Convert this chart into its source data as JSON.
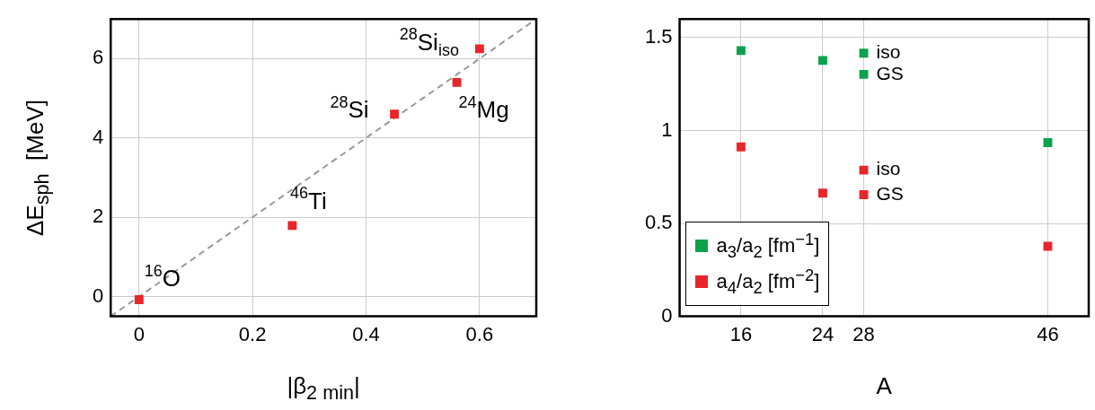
{
  "chart_data": [
    {
      "type": "scatter",
      "xlabel": "|β$_{2 min}$|",
      "ylabel": "ΔE$_{sph}$  [MeV]",
      "xlim": [
        -0.05,
        0.7
      ],
      "ylim": [
        -0.5,
        7
      ],
      "xticks": [
        0,
        0.2,
        0.4,
        0.6
      ],
      "yticks": [
        0,
        2,
        4,
        6
      ],
      "grid": true,
      "marker": "square",
      "series": [
        {
          "color": "#e8262a",
          "x": [
            0,
            0.27,
            0.45,
            0.56,
            0.6
          ],
          "values": [
            -0.08,
            1.79,
            4.6,
            5.4,
            6.25
          ]
        },
        {
          "type": "line",
          "color": "#999999",
          "line_style": "dashed",
          "marker": "none",
          "x": [
            -0.05,
            0.7
          ],
          "values": [
            -0.5,
            7
          ]
        }
      ],
      "annotations": [
        {
          "text": "$^{16}$O",
          "x": 0,
          "y": -0.08
        },
        {
          "text": "$^{46}$Ti",
          "x": 0.27,
          "y": 1.79
        },
        {
          "text": "$^{28}$Si",
          "x": 0.45,
          "y": 4.6
        },
        {
          "text": "$^{24}$Mg",
          "x": 0.56,
          "y": 5.4
        },
        {
          "text": "$^{28}$Si$_{iso}$",
          "x": 0.6,
          "y": 6.25
        }
      ]
    },
    {
      "type": "scatter",
      "xlabel": "A",
      "xlim": [
        10,
        50
      ],
      "ylim": [
        0,
        1.6
      ],
      "xticks": [
        16,
        24,
        28,
        46
      ],
      "yticks": [
        0,
        0.5,
        1,
        1.5
      ],
      "grid": true,
      "marker": "square",
      "legend": "bottom left",
      "series": [
        {
          "name": "a$_{3}$/a$_{2}$ [fm$^{−1}$]",
          "color": "#0ca24c",
          "x": [
            16,
            24,
            28,
            28,
            46
          ],
          "values": [
            1.43,
            1.377,
            1.416,
            1.302,
            0.935
          ]
        },
        {
          "name": "a$_{4}$/a$_{2}$ [fm$^{−2}$]",
          "color": "#e8262a",
          "x": [
            16,
            24,
            28,
            28,
            46
          ],
          "values": [
            0.912,
            0.663,
            0.787,
            0.655,
            0.377
          ]
        }
      ],
      "annotations": [
        {
          "text": "iso",
          "x": 28,
          "y": 1.416
        },
        {
          "text": "GS",
          "x": 28,
          "y": 1.302
        },
        {
          "text": "iso",
          "x": 28,
          "y": 0.787
        },
        {
          "text": "GS",
          "x": 28,
          "y": 0.655
        }
      ]
    }
  ]
}
